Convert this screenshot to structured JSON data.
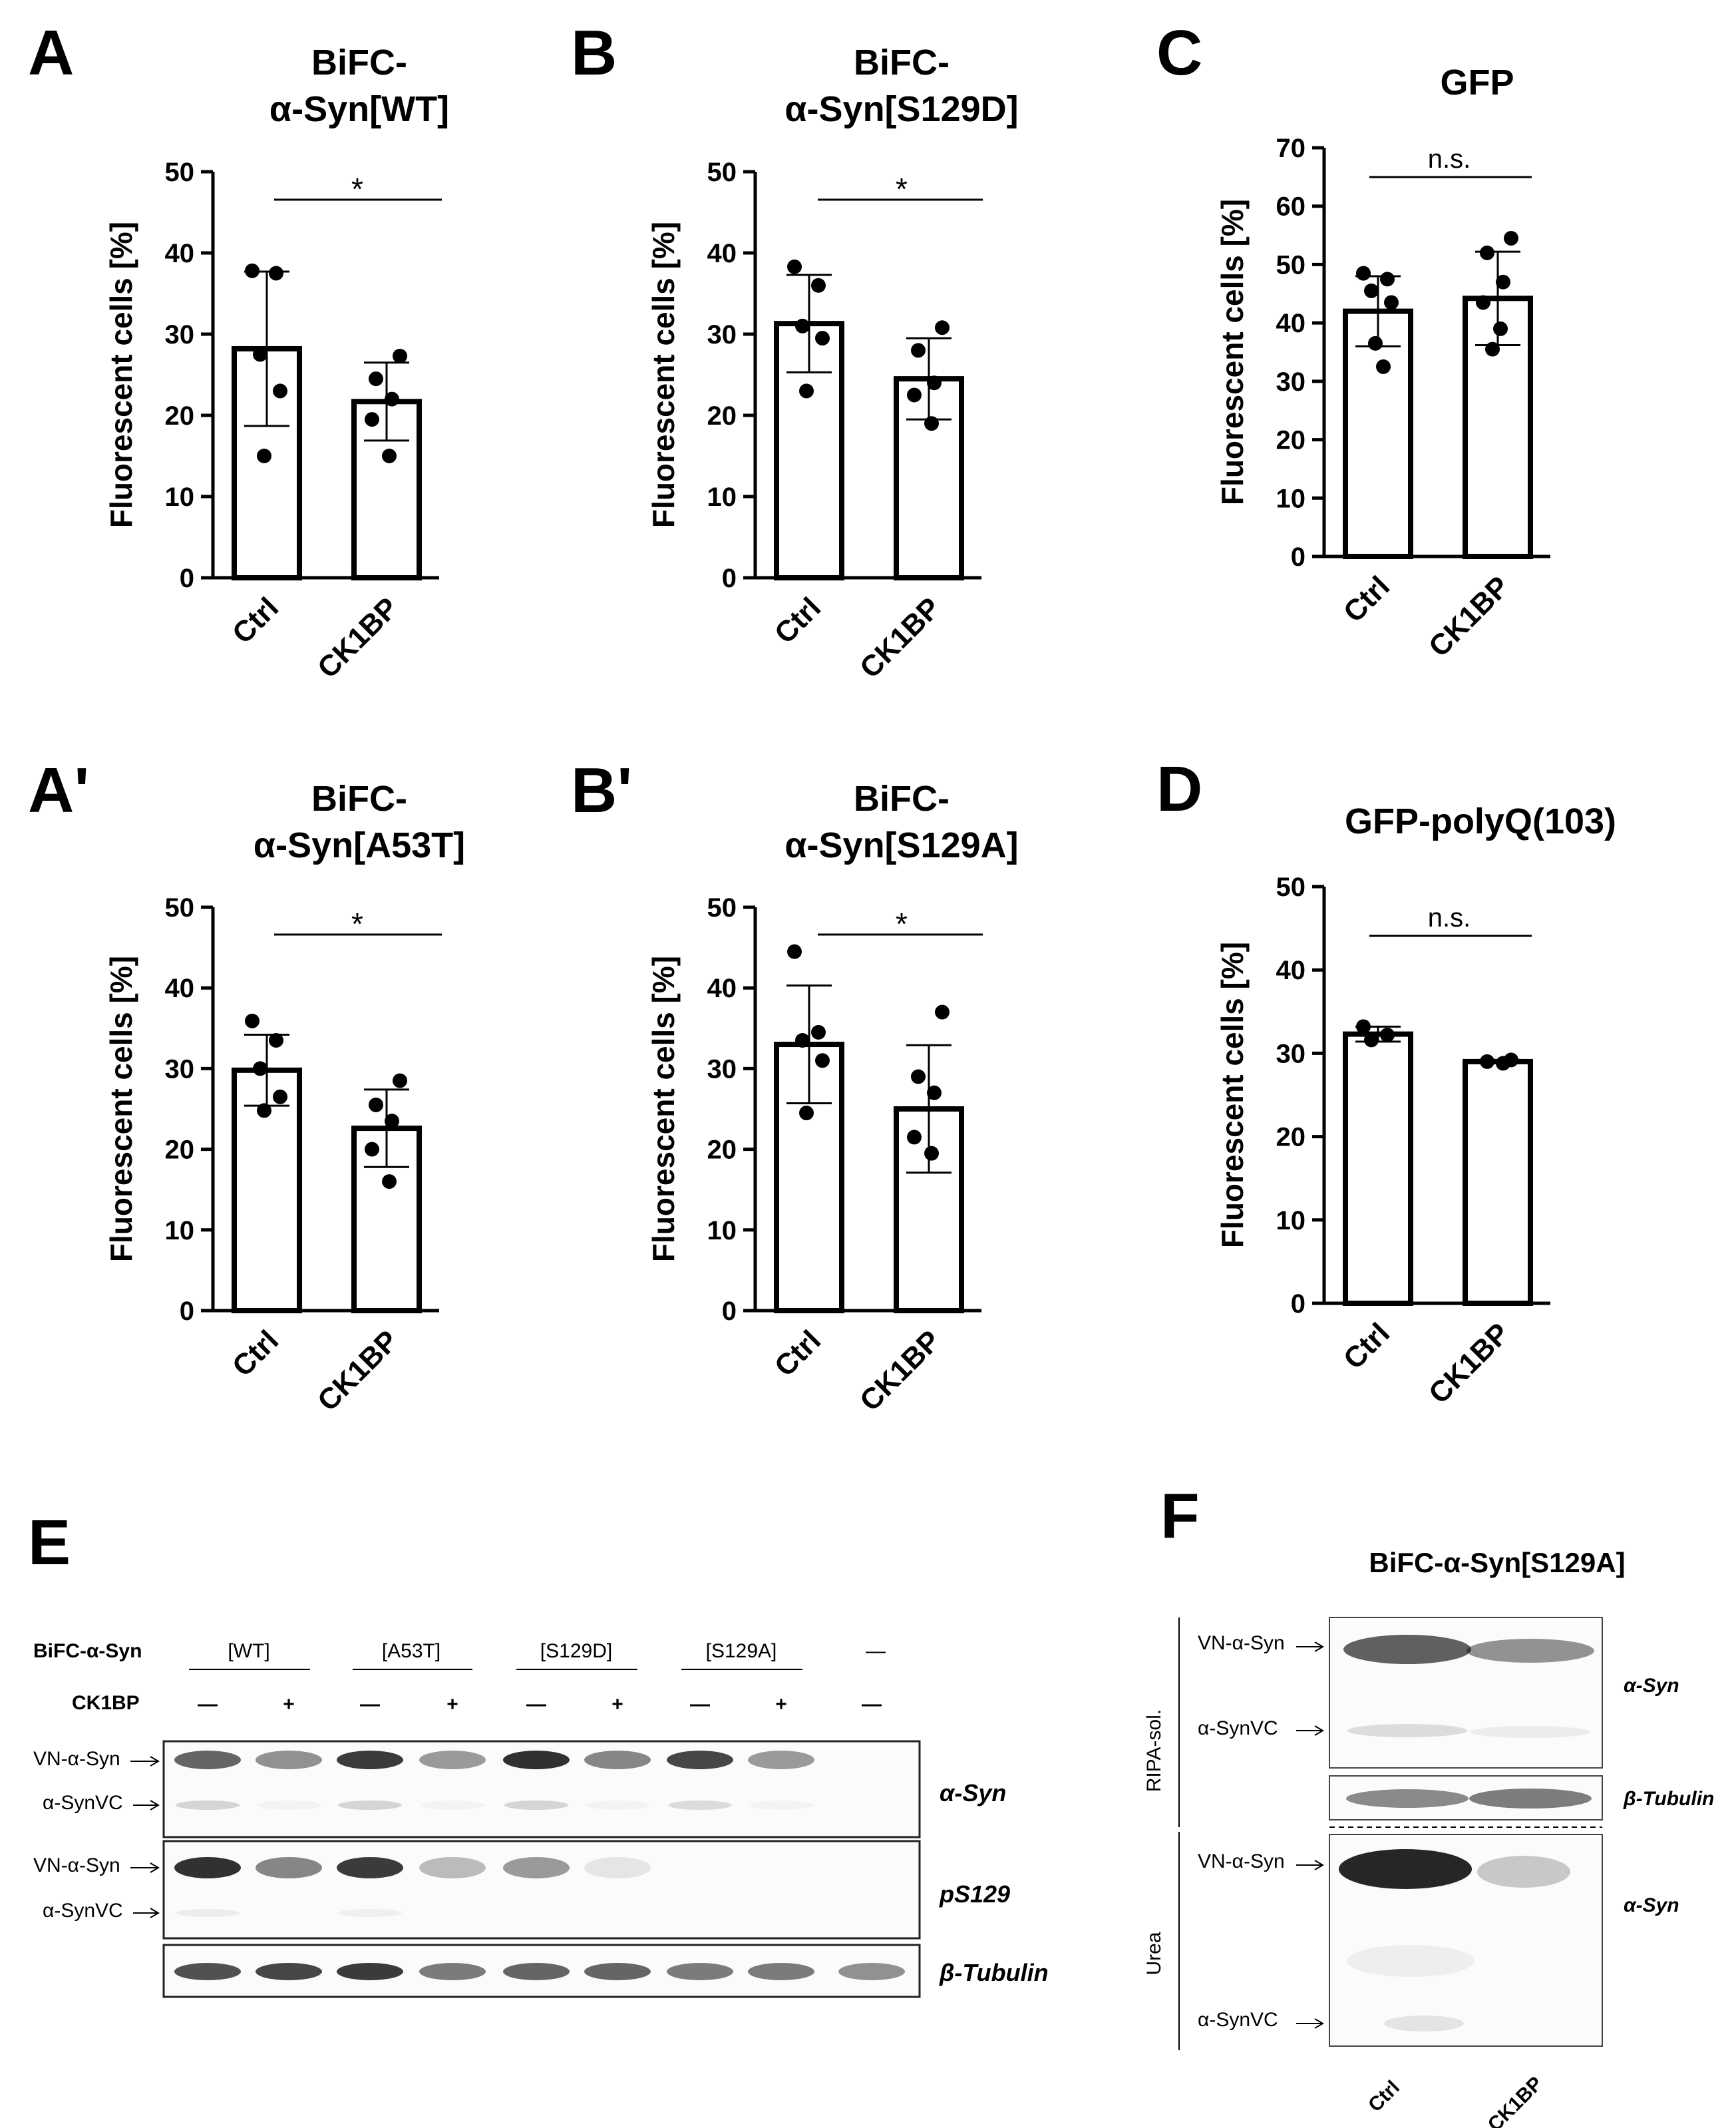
{
  "panels": [
    {
      "label": "A",
      "title_lines": [
        "BiFC-",
        "α-Syn[WT]"
      ],
      "ylabel": "Fluorescent cells [%]",
      "yticks": [
        "0",
        "10",
        "20",
        "30",
        "40",
        "50"
      ],
      "ymax": 50,
      "categories": [
        "Ctrl",
        "CK1BP"
      ],
      "significance": "*"
    },
    {
      "label": "B",
      "title_lines": [
        "BiFC-",
        "α-Syn[S129D]"
      ],
      "ylabel": "Fluorescent cells [%]",
      "yticks": [
        "0",
        "10",
        "20",
        "30",
        "40",
        "50"
      ],
      "ymax": 50,
      "categories": [
        "Ctrl",
        "CK1BP"
      ],
      "significance": "*"
    },
    {
      "label": "C",
      "title_lines": [
        "GFP"
      ],
      "ylabel": "Fluorescent cells [%]",
      "yticks": [
        "0",
        "10",
        "20",
        "30",
        "40",
        "50",
        "60",
        "70"
      ],
      "ymax": 70,
      "categories": [
        "Ctrl",
        "CK1BP"
      ],
      "significance": "n.s."
    },
    {
      "label": "A'",
      "title_lines": [
        "BiFC-",
        "α-Syn[A53T]"
      ],
      "ylabel": "Fluorescent cells [%]",
      "yticks": [
        "0",
        "10",
        "20",
        "30",
        "40",
        "50"
      ],
      "ymax": 50,
      "categories": [
        "Ctrl",
        "CK1BP"
      ],
      "significance": "*"
    },
    {
      "label": "B'",
      "title_lines": [
        "BiFC-",
        "α-Syn[S129A]"
      ],
      "ylabel": "Fluorescent cells [%]",
      "yticks": [
        "0",
        "10",
        "20",
        "30",
        "40",
        "50"
      ],
      "ymax": 50,
      "categories": [
        "Ctrl",
        "CK1BP"
      ],
      "significance": "*"
    },
    {
      "label": "D",
      "title_lines": [
        "GFP-polyQ(103)"
      ],
      "ylabel": "Fluorescent cells [%]",
      "yticks": [
        "0",
        "10",
        "20",
        "30",
        "40",
        "50"
      ],
      "ymax": 50,
      "categories": [
        "Ctrl",
        "CK1BP"
      ],
      "significance": "n.s."
    }
  ],
  "chart_data": [
    {
      "type": "bar",
      "panel": "A",
      "categories": [
        "Ctrl",
        "CK1BP"
      ],
      "series": [
        {
          "values": [
            28.2,
            21.7
          ],
          "sd": [
            9.5,
            4.8
          ],
          "points": [
            [
              37.8,
              37.5,
              27.5,
              23.0,
              15.0
            ],
            [
              27.3,
              24.5,
              22.0,
              19.5,
              15.0
            ]
          ]
        }
      ],
      "ylabel": "Fluorescent cells [%]",
      "ylim": [
        0,
        50
      ]
    },
    {
      "type": "bar",
      "panel": "B",
      "categories": [
        "Ctrl",
        "CK1BP"
      ],
      "series": [
        {
          "values": [
            31.3,
            24.5
          ],
          "sd": [
            6.0,
            5.0
          ],
          "points": [
            [
              38.3,
              36.0,
              31.0,
              29.5,
              23.0
            ],
            [
              30.8,
              28.0,
              24.0,
              22.5,
              19.0
            ]
          ]
        }
      ],
      "ylabel": "Fluorescent cells [%]",
      "ylim": [
        0,
        50
      ]
    },
    {
      "type": "bar",
      "panel": "C",
      "categories": [
        "Ctrl",
        "CK1BP"
      ],
      "series": [
        {
          "values": [
            42.0,
            44.2
          ],
          "sd": [
            6.0,
            8.0
          ],
          "points": [
            [
              48.5,
              47.5,
              45.5,
              43.5,
              36.5,
              32.5
            ],
            [
              54.5,
              52.0,
              47.0,
              43.5,
              39.0,
              35.5
            ]
          ]
        }
      ],
      "ylabel": "Fluorescent cells [%]",
      "ylim": [
        0,
        70
      ]
    },
    {
      "type": "bar",
      "panel": "A'",
      "categories": [
        "Ctrl",
        "CK1BP"
      ],
      "series": [
        {
          "values": [
            29.8,
            22.6
          ],
          "sd": [
            4.4,
            4.8
          ],
          "points": [
            [
              35.9,
              33.5,
              30.0,
              26.5,
              24.8
            ],
            [
              28.5,
              25.5,
              23.5,
              20.0,
              16.0
            ]
          ]
        }
      ],
      "ylabel": "Fluorescent cells [%]",
      "ylim": [
        0,
        50
      ]
    },
    {
      "type": "bar",
      "panel": "B'",
      "categories": [
        "Ctrl",
        "CK1BP"
      ],
      "series": [
        {
          "values": [
            33.0,
            25.0
          ],
          "sd": [
            7.3,
            7.9
          ],
          "points": [
            [
              44.5,
              34.5,
              33.5,
              31.0,
              24.5
            ],
            [
              37.0,
              29.0,
              27.0,
              21.5,
              19.5
            ]
          ]
        }
      ],
      "ylabel": "Fluorescent cells [%]",
      "ylim": [
        0,
        50
      ]
    },
    {
      "type": "bar",
      "panel": "D",
      "categories": [
        "Ctrl",
        "CK1BP"
      ],
      "series": [
        {
          "values": [
            32.3,
            29.0
          ],
          "sd": [
            0.9,
            0.2
          ],
          "points": [
            [
              33.2,
              32.2,
              31.6
            ],
            [
              29.2,
              29.0,
              28.8
            ]
          ]
        }
      ],
      "ylabel": "Fluorescent cells [%]",
      "ylim": [
        0,
        50
      ]
    }
  ],
  "western_e": {
    "label": "E",
    "row1_label": "BiFC-α-Syn",
    "groups": [
      "[WT]",
      "[A53T]",
      "[S129D]",
      "[S129A]",
      "—"
    ],
    "row2_label": "CK1BP",
    "ck1bp_signs": [
      "—",
      "+",
      "—",
      "+",
      "—",
      "+",
      "—",
      "+",
      "—"
    ],
    "blots": [
      {
        "name": "α-Syn",
        "markers": [
          "VN-α-Syn",
          "α-SynVC"
        ],
        "top_bands": [
          0.7,
          0.5,
          0.9,
          0.45,
          0.95,
          0.55,
          0.85,
          0.45,
          0
        ],
        "low_bands": [
          0.25,
          0.05,
          0.25,
          0.05,
          0.25,
          0.05,
          0.2,
          0.05,
          0
        ]
      },
      {
        "name": "pS129",
        "markers": [
          "VN-α-Syn",
          "α-SynVC"
        ],
        "top_bands": [
          0.95,
          0.55,
          0.9,
          0.3,
          0.45,
          0.1,
          0,
          0,
          0
        ],
        "low_bands": [
          0.1,
          0,
          0.08,
          0,
          0,
          0,
          0,
          0,
          0
        ]
      },
      {
        "name": "β-Tubulin",
        "markers": [],
        "top_bands": [
          0.8,
          0.85,
          0.9,
          0.6,
          0.7,
          0.7,
          0.6,
          0.6,
          0.5
        ],
        "low_bands": []
      }
    ]
  },
  "western_f": {
    "label": "F",
    "title": "BiFC-α-Syn[S129A]",
    "fraction_1": "RIPA-sol.",
    "fraction_2": "Urea",
    "markers_top": [
      "VN-α-Syn",
      "α-SynVC"
    ],
    "markers_bottom": [
      "VN-α-Syn",
      "α-SynVC"
    ],
    "blot_labels": [
      "α-Syn",
      "β-Tubulin",
      "α-Syn"
    ],
    "lanes": [
      "Ctrl",
      "CK1BP"
    ]
  }
}
